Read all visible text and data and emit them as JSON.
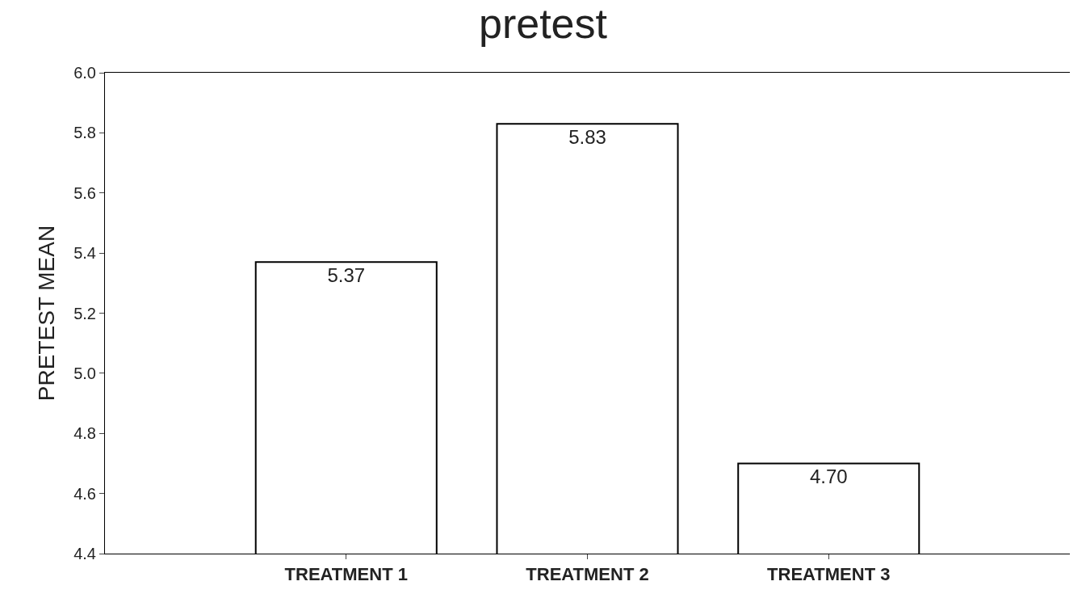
{
  "chart_data": {
    "type": "bar",
    "title": "pretest",
    "ylabel": "PRETEST MEAN",
    "categories": [
      "TREATMENT 1",
      "TREATMENT 2",
      "TREATMENT 3"
    ],
    "values": [
      5.37,
      5.83,
      4.7
    ],
    "value_labels": [
      "5.37",
      "5.83",
      "4.70"
    ],
    "color": "#ffffff",
    "ylim": [
      4.4,
      6.0
    ],
    "yticks": [
      {
        "value": 4.4,
        "label": "4.4"
      },
      {
        "value": 4.6,
        "label": "4.6"
      },
      {
        "value": 4.8,
        "label": "4.8"
      },
      {
        "value": 5.0,
        "label": "5.0"
      },
      {
        "value": 5.2,
        "label": "5.2"
      },
      {
        "value": 5.4,
        "label": "5.4"
      },
      {
        "value": 5.6,
        "label": "5.6"
      },
      {
        "value": 5.8,
        "label": "5.8"
      },
      {
        "value": 6.0,
        "label": "6.0"
      }
    ],
    "legend": false
  }
}
